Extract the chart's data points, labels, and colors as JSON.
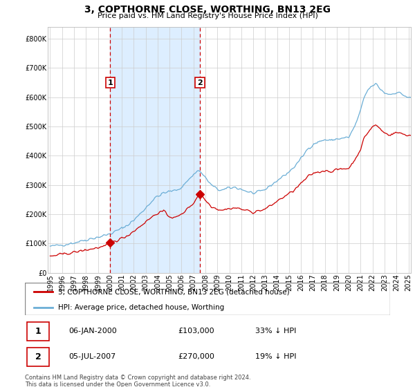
{
  "title": "3, COPTHORNE CLOSE, WORTHING, BN13 2EG",
  "subtitle": "Price paid vs. HM Land Registry's House Price Index (HPI)",
  "ytick_values": [
    0,
    100000,
    200000,
    300000,
    400000,
    500000,
    600000,
    700000,
    800000
  ],
  "ylim": [
    0,
    840000
  ],
  "sale1_year": 2000.04,
  "sale1_price": 103000,
  "sale1_date": "06-JAN-2000",
  "sale1_label": "33% ↓ HPI",
  "sale2_year": 2007.54,
  "sale2_price": 270000,
  "sale2_date": "05-JUL-2007",
  "sale2_label": "19% ↓ HPI",
  "legend_label1": "3, COPTHORNE CLOSE, WORTHING, BN13 2EG (detached house)",
  "legend_label2": "HPI: Average price, detached house, Worthing",
  "footer": "Contains HM Land Registry data © Crown copyright and database right 2024.\nThis data is licensed under the Open Government Licence v3.0.",
  "hpi_color": "#6baed6",
  "price_color": "#cc0000",
  "shade_color": "#ddeeff",
  "background_color": "#ffffff",
  "grid_color": "#cccccc",
  "vline_color": "#cc0000",
  "border_color": "#cc0000",
  "xmin": 1995.0,
  "xmax": 2025.2
}
